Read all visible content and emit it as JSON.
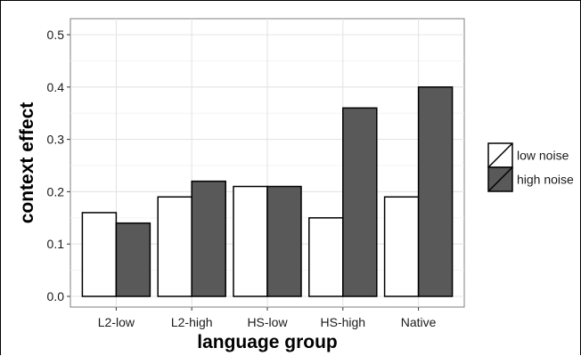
{
  "chart_data": {
    "type": "bar",
    "xlabel": "language group",
    "ylabel": "context effect",
    "categories": [
      "L2-low",
      "L2-high",
      "HS-low",
      "HS-high",
      "Native"
    ],
    "series": [
      {
        "name": "low noise",
        "color": "#ffffff",
        "values": [
          0.16,
          0.19,
          0.21,
          0.15,
          0.19
        ]
      },
      {
        "name": "high noise",
        "color": "#595959",
        "values": [
          0.14,
          0.22,
          0.21,
          0.36,
          0.4
        ]
      }
    ],
    "ylim": [
      0,
      0.5
    ],
    "yticks": [
      "0.0",
      "0.1",
      "0.2",
      "0.3",
      "0.4",
      "0.5"
    ],
    "grid": true,
    "legend_position": "right"
  }
}
